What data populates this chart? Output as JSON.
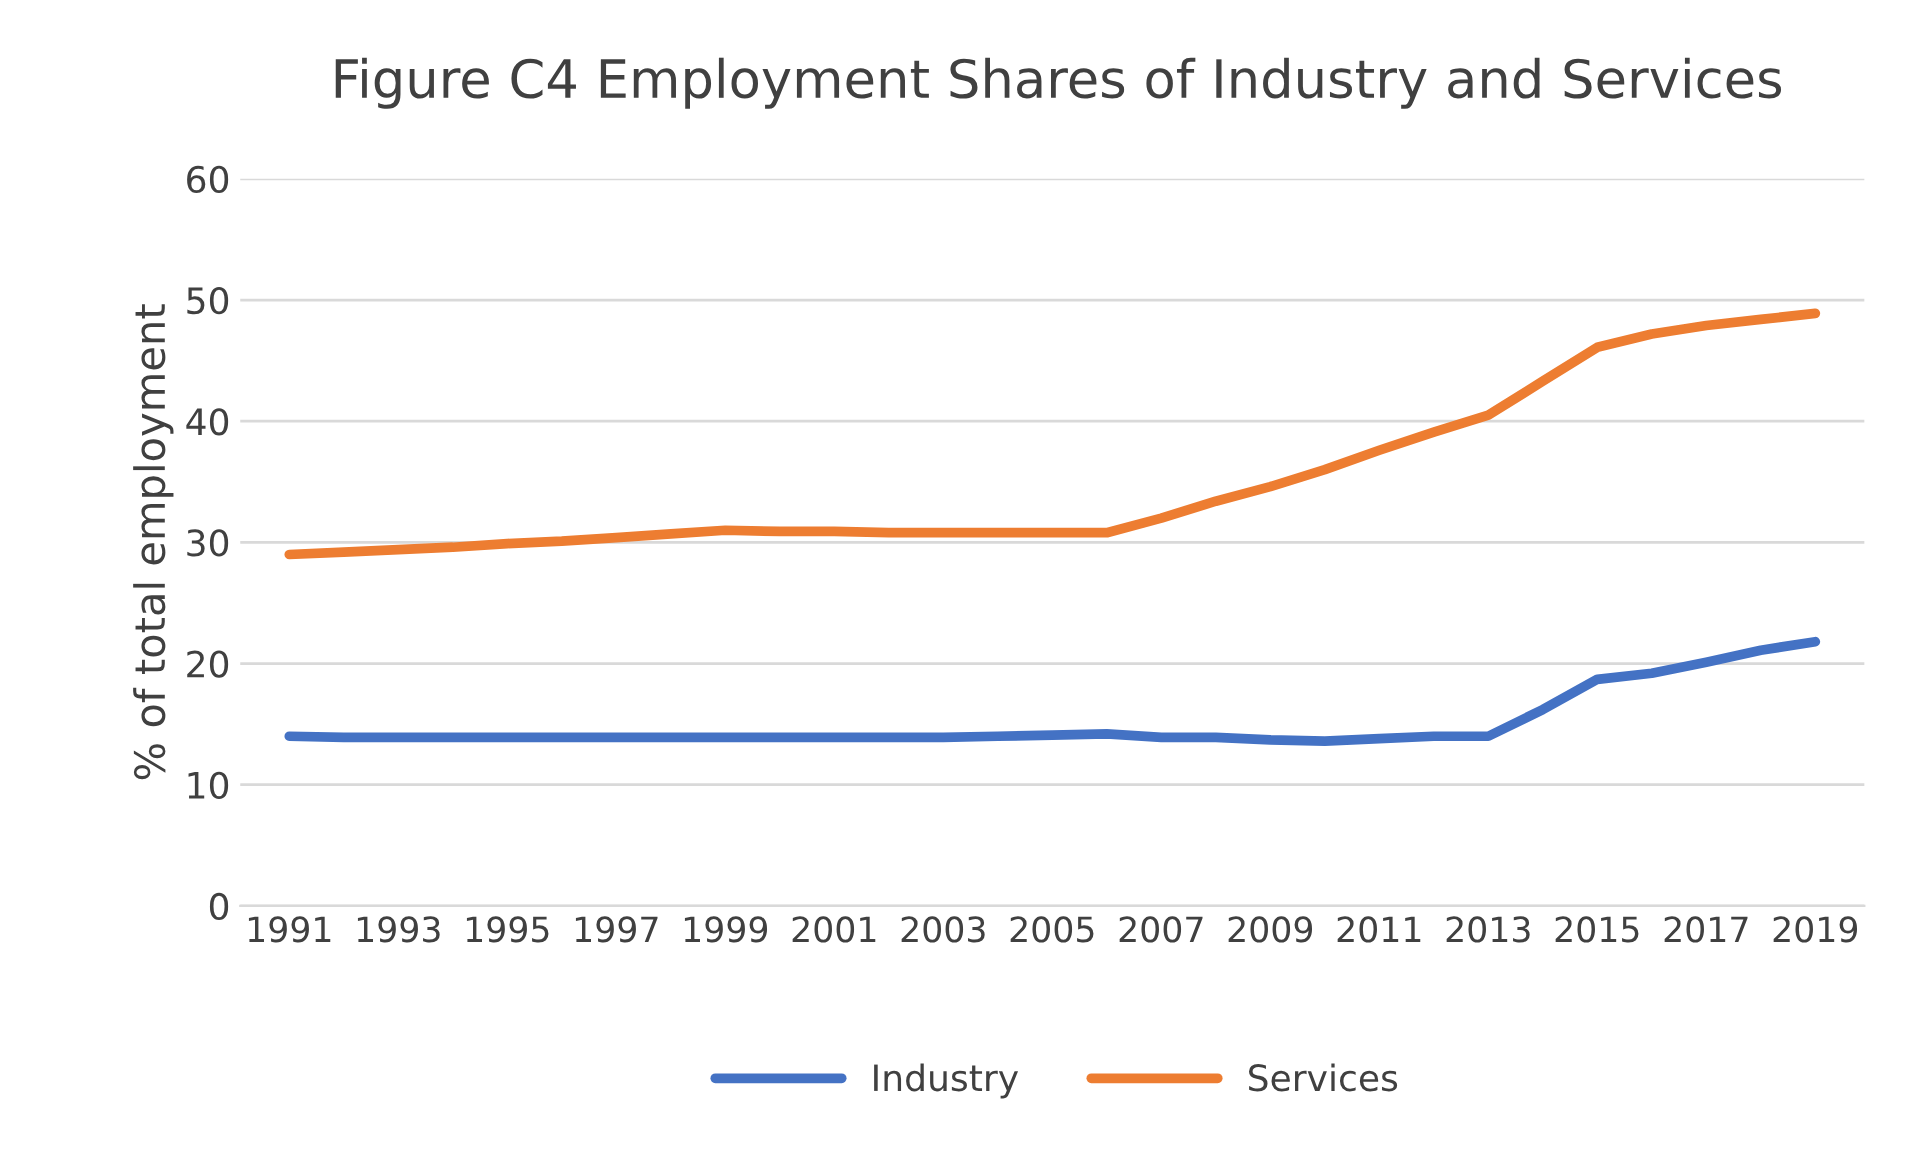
{
  "chart_data": {
    "type": "line",
    "title": "Figure C4 Employment Shares of Industry and Services",
    "ylabel": "% of total employment",
    "categories": [
      "1991",
      null,
      "1993",
      null,
      "1995",
      null,
      "1997",
      null,
      "1999",
      null,
      "2001",
      null,
      "2003",
      null,
      "2005",
      null,
      "2007",
      null,
      "2009",
      null,
      "2011",
      null,
      "2013",
      null,
      "2015",
      null,
      "2017",
      null,
      "2019"
    ],
    "series": [
      {
        "name": "Industry",
        "color": "#4472c4",
        "values": [
          14,
          13.9,
          13.9,
          13.9,
          13.9,
          13.9,
          13.9,
          13.9,
          13.9,
          13.9,
          13.9,
          13.9,
          13.9,
          14,
          14.1,
          14.2,
          13.9,
          13.9,
          13.7,
          13.6,
          13.8,
          14,
          14,
          16.2,
          18.7,
          19.2,
          20.1,
          21.1,
          21.8
        ]
      },
      {
        "name": "Services",
        "color": "#ed7d31",
        "values": [
          29,
          29.2,
          29.4,
          29.6,
          29.9,
          30.1,
          30.4,
          30.7,
          31,
          30.9,
          30.9,
          30.8,
          30.8,
          30.8,
          30.8,
          30.8,
          32,
          33.4,
          34.6,
          36,
          37.6,
          39.1,
          40.5,
          43.3,
          46.1,
          47.2,
          47.9,
          48.4,
          48.9
        ]
      }
    ],
    "ylim": [
      0,
      60
    ],
    "yticks": [
      0,
      10,
      20,
      30,
      40,
      50,
      60
    ],
    "grid": "y",
    "legend": "bottom",
    "marker": "none",
    "line_style": "solid"
  }
}
